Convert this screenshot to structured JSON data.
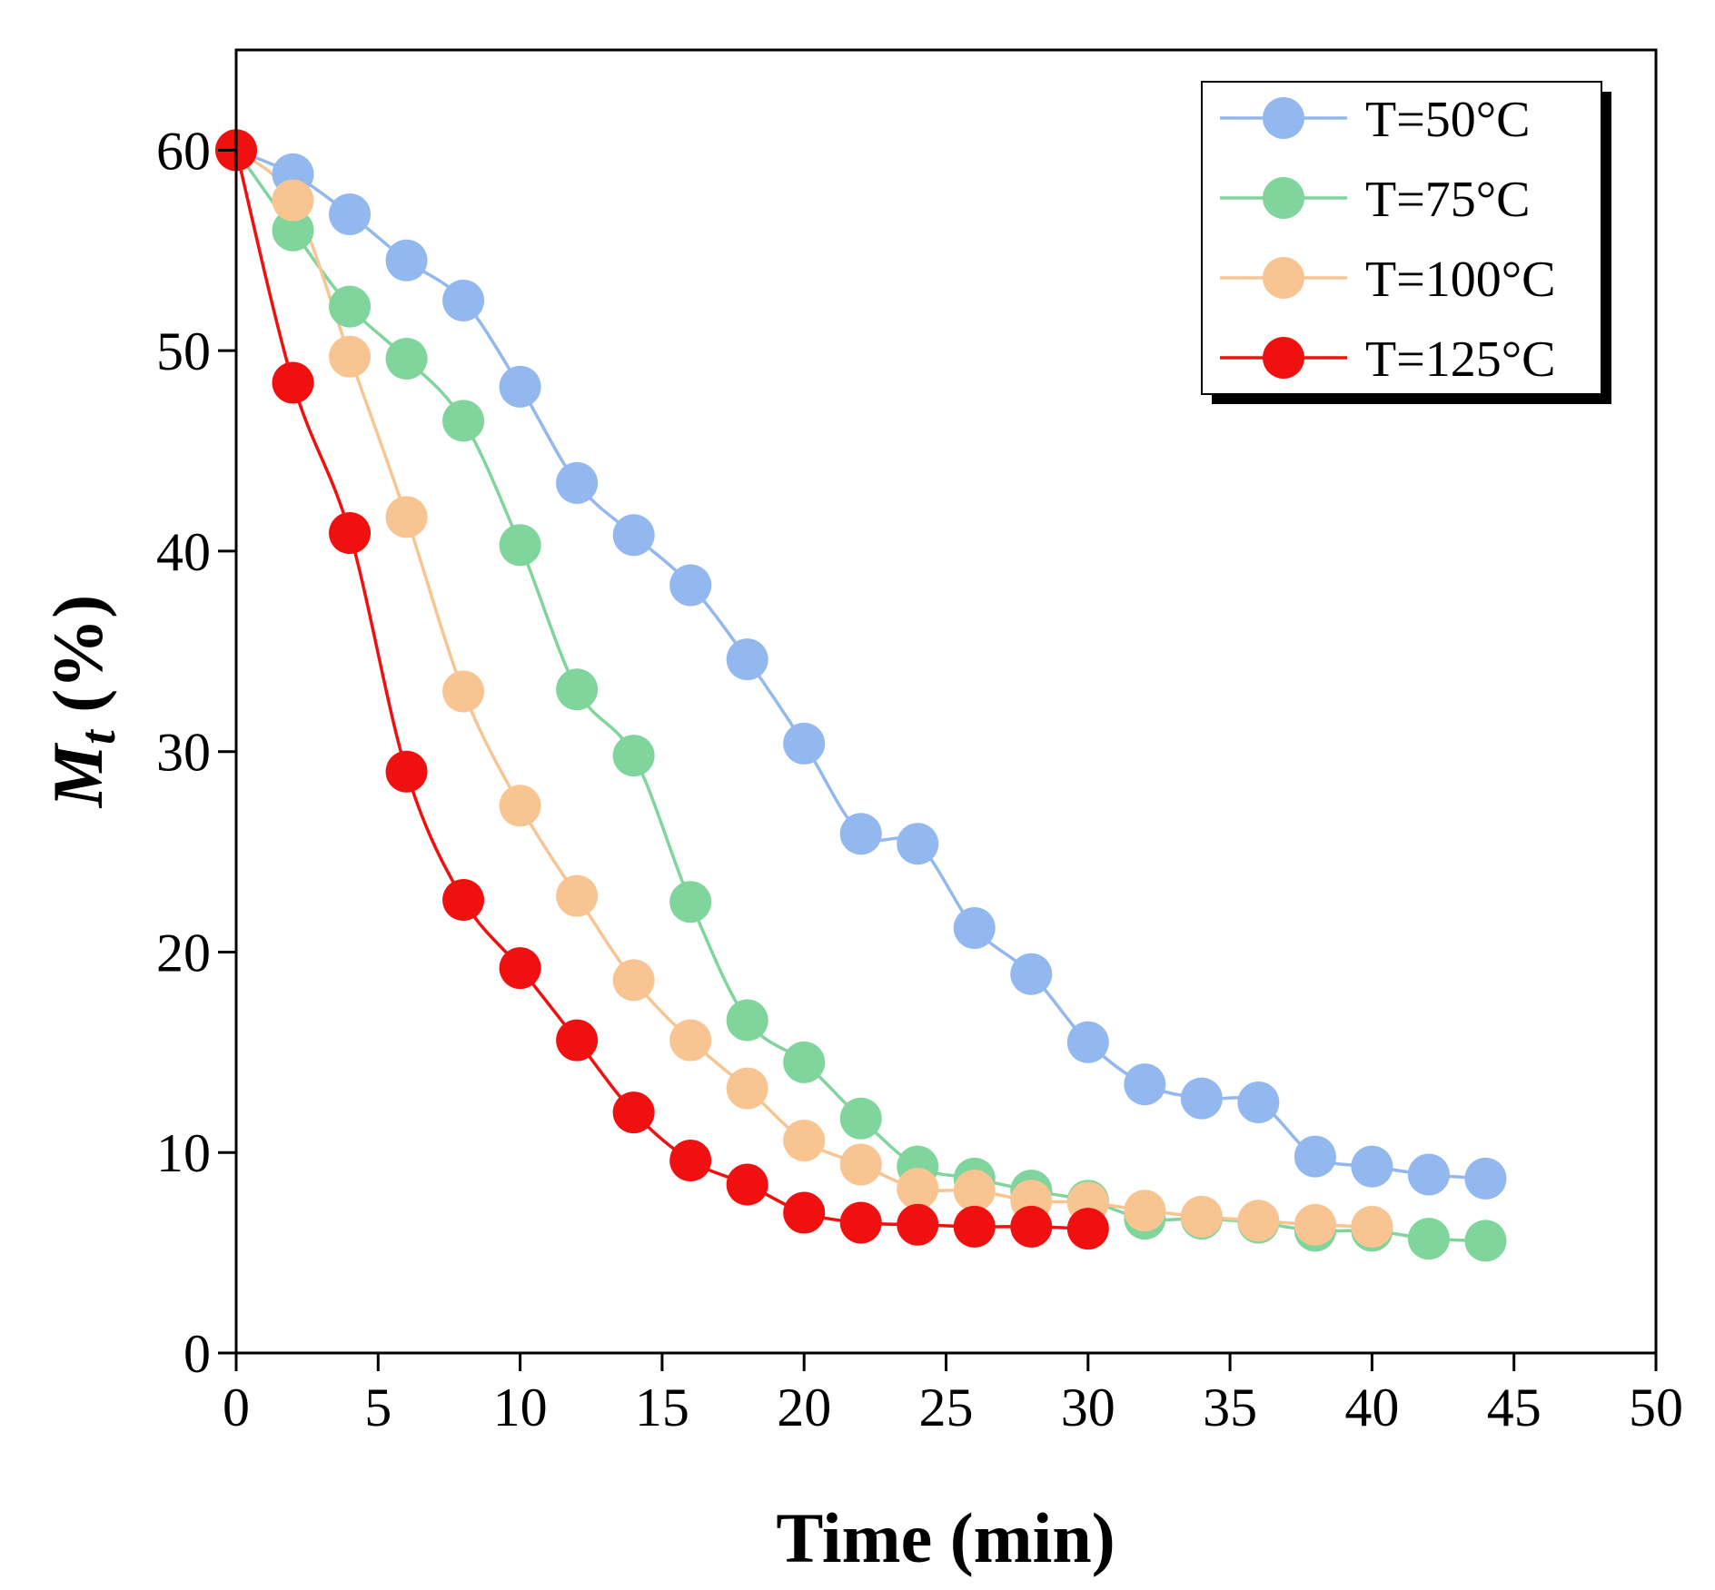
{
  "chart_data": {
    "type": "line",
    "xlabel": "Time (min)",
    "ylabel_main": "M",
    "ylabel_sub": "t",
    "ylabel_unit": " (%)",
    "xlim": [
      0,
      50
    ],
    "ylim": [
      0,
      65
    ],
    "xticks": [
      0,
      5,
      10,
      15,
      20,
      25,
      30,
      35,
      40,
      45,
      50
    ],
    "yticks": [
      0,
      10,
      20,
      30,
      40,
      50,
      60
    ],
    "grid": false,
    "legend_position": "top-right",
    "series": [
      {
        "name": "T=50°C",
        "color": "#92b8ef",
        "x": [
          0,
          2,
          4,
          6,
          8,
          10,
          12,
          14,
          16,
          18,
          20,
          22,
          24,
          26,
          28,
          30,
          32,
          34,
          36,
          38,
          40,
          42,
          44
        ],
        "y": [
          60,
          58.8,
          56.8,
          54.5,
          52.5,
          48.2,
          43.4,
          40.8,
          38.3,
          34.6,
          30.4,
          25.9,
          25.4,
          21.2,
          18.9,
          15.5,
          13.4,
          12.7,
          12.5,
          9.8,
          9.3,
          8.9,
          8.7
        ]
      },
      {
        "name": "T=75°C",
        "color": "#7fd59b",
        "x": [
          0,
          2,
          4,
          6,
          8,
          10,
          12,
          14,
          16,
          18,
          20,
          22,
          24,
          26,
          28,
          30,
          32,
          34,
          36,
          38,
          40,
          42,
          44
        ],
        "y": [
          60,
          56,
          52.2,
          49.6,
          46.5,
          40.3,
          33.1,
          29.8,
          22.5,
          16.6,
          14.5,
          11.7,
          9.3,
          8.7,
          8.1,
          7.6,
          6.7,
          6.7,
          6.5,
          6.1,
          6.1,
          5.7,
          5.6
        ]
      },
      {
        "name": "T=100°C",
        "color": "#f8c592",
        "x": [
          0,
          2,
          4,
          6,
          8,
          10,
          12,
          14,
          16,
          18,
          20,
          22,
          24,
          26,
          28,
          30,
          32,
          34,
          36,
          38,
          40
        ],
        "y": [
          60,
          57.5,
          49.7,
          41.7,
          33,
          27.3,
          22.8,
          18.6,
          15.6,
          13.2,
          10.6,
          9.4,
          8.2,
          8.1,
          7.6,
          7.5,
          7.1,
          6.8,
          6.6,
          6.4,
          6.3
        ]
      },
      {
        "name": "T=125°C",
        "color": "#f01010",
        "x": [
          0,
          2,
          4,
          6,
          8,
          10,
          12,
          14,
          16,
          18,
          20,
          22,
          24,
          26,
          28,
          30
        ],
        "y": [
          60,
          48.4,
          40.9,
          29,
          22.6,
          19.2,
          15.6,
          12,
          9.6,
          8.4,
          7,
          6.5,
          6.4,
          6.3,
          6.3,
          6.2
        ]
      }
    ]
  }
}
